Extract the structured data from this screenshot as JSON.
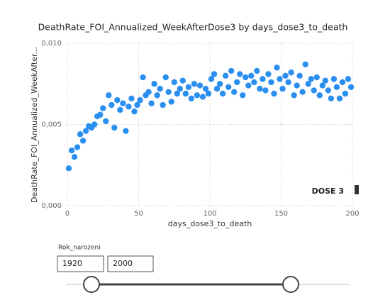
{
  "chart_data": {
    "type": "scatter",
    "title": "DeathRate_FOI_Annualized_WeekAfterDose3 by days_dose3_to_death",
    "x_label": "days_dose3_to_death",
    "y_label": "DeathRate_FOI_Annualized_WeekAfter...",
    "x": [
      1,
      3,
      5,
      7,
      9,
      11,
      13,
      15,
      17,
      19,
      21,
      23,
      25,
      27,
      29,
      31,
      33,
      35,
      37,
      39,
      41,
      43,
      45,
      47,
      49,
      51,
      53,
      55,
      57,
      59,
      61,
      63,
      65,
      67,
      69,
      71,
      73,
      75,
      77,
      79,
      81,
      83,
      85,
      87,
      89,
      91,
      93,
      95,
      97,
      99,
      101,
      103,
      105,
      107,
      109,
      111,
      113,
      115,
      117,
      119,
      121,
      123,
      125,
      127,
      129,
      131,
      133,
      135,
      137,
      139,
      141,
      143,
      145,
      147,
      149,
      151,
      153,
      155,
      157,
      159,
      161,
      163,
      165,
      167,
      169,
      171,
      173,
      175,
      177,
      179,
      181,
      183,
      185,
      187,
      189,
      191,
      193,
      195,
      197,
      199
    ],
    "series": [
      {
        "name": "DOSE 3",
        "color": "#2b8ff0",
        "values": [
          0.0023,
          0.0034,
          0.003,
          0.0036,
          0.0044,
          0.004,
          0.0046,
          0.0049,
          0.0048,
          0.005,
          0.0055,
          0.0056,
          0.006,
          0.0052,
          0.0068,
          0.0062,
          0.0048,
          0.0065,
          0.0059,
          0.0063,
          0.0046,
          0.0061,
          0.0066,
          0.0058,
          0.0062,
          0.0065,
          0.0079,
          0.0068,
          0.007,
          0.0063,
          0.0075,
          0.0068,
          0.0072,
          0.0062,
          0.0079,
          0.007,
          0.0064,
          0.0076,
          0.0069,
          0.0072,
          0.0077,
          0.0069,
          0.0073,
          0.0066,
          0.0075,
          0.0068,
          0.0074,
          0.0067,
          0.0072,
          0.0069,
          0.0078,
          0.0081,
          0.0072,
          0.0075,
          0.0069,
          0.008,
          0.0073,
          0.0083,
          0.007,
          0.0076,
          0.0081,
          0.0068,
          0.0079,
          0.0074,
          0.008,
          0.0076,
          0.0083,
          0.0072,
          0.0078,
          0.0071,
          0.0081,
          0.0076,
          0.0069,
          0.0085,
          0.0078,
          0.0072,
          0.008,
          0.0076,
          0.0082,
          0.0068,
          0.0074,
          0.008,
          0.007,
          0.0087,
          0.0075,
          0.0078,
          0.0071,
          0.0079,
          0.0068,
          0.0074,
          0.0077,
          0.0071,
          0.0066,
          0.0078,
          0.0073,
          0.0066,
          0.0076,
          0.0069,
          0.0078,
          0.0073
        ]
      }
    ],
    "xlim": [
      0,
      200
    ],
    "xticks": [
      0,
      50,
      100,
      150,
      200
    ],
    "ylim": [
      0,
      0.01
    ],
    "yticks": [
      {
        "value": 0,
        "label": "0,000"
      },
      {
        "value": 0.005,
        "label": "0,005"
      },
      {
        "value": 0.01,
        "label": "0,010"
      }
    ],
    "grid": true
  },
  "slicer": {
    "title": "Rok_narozeni",
    "min": "1920",
    "max": "2000"
  }
}
